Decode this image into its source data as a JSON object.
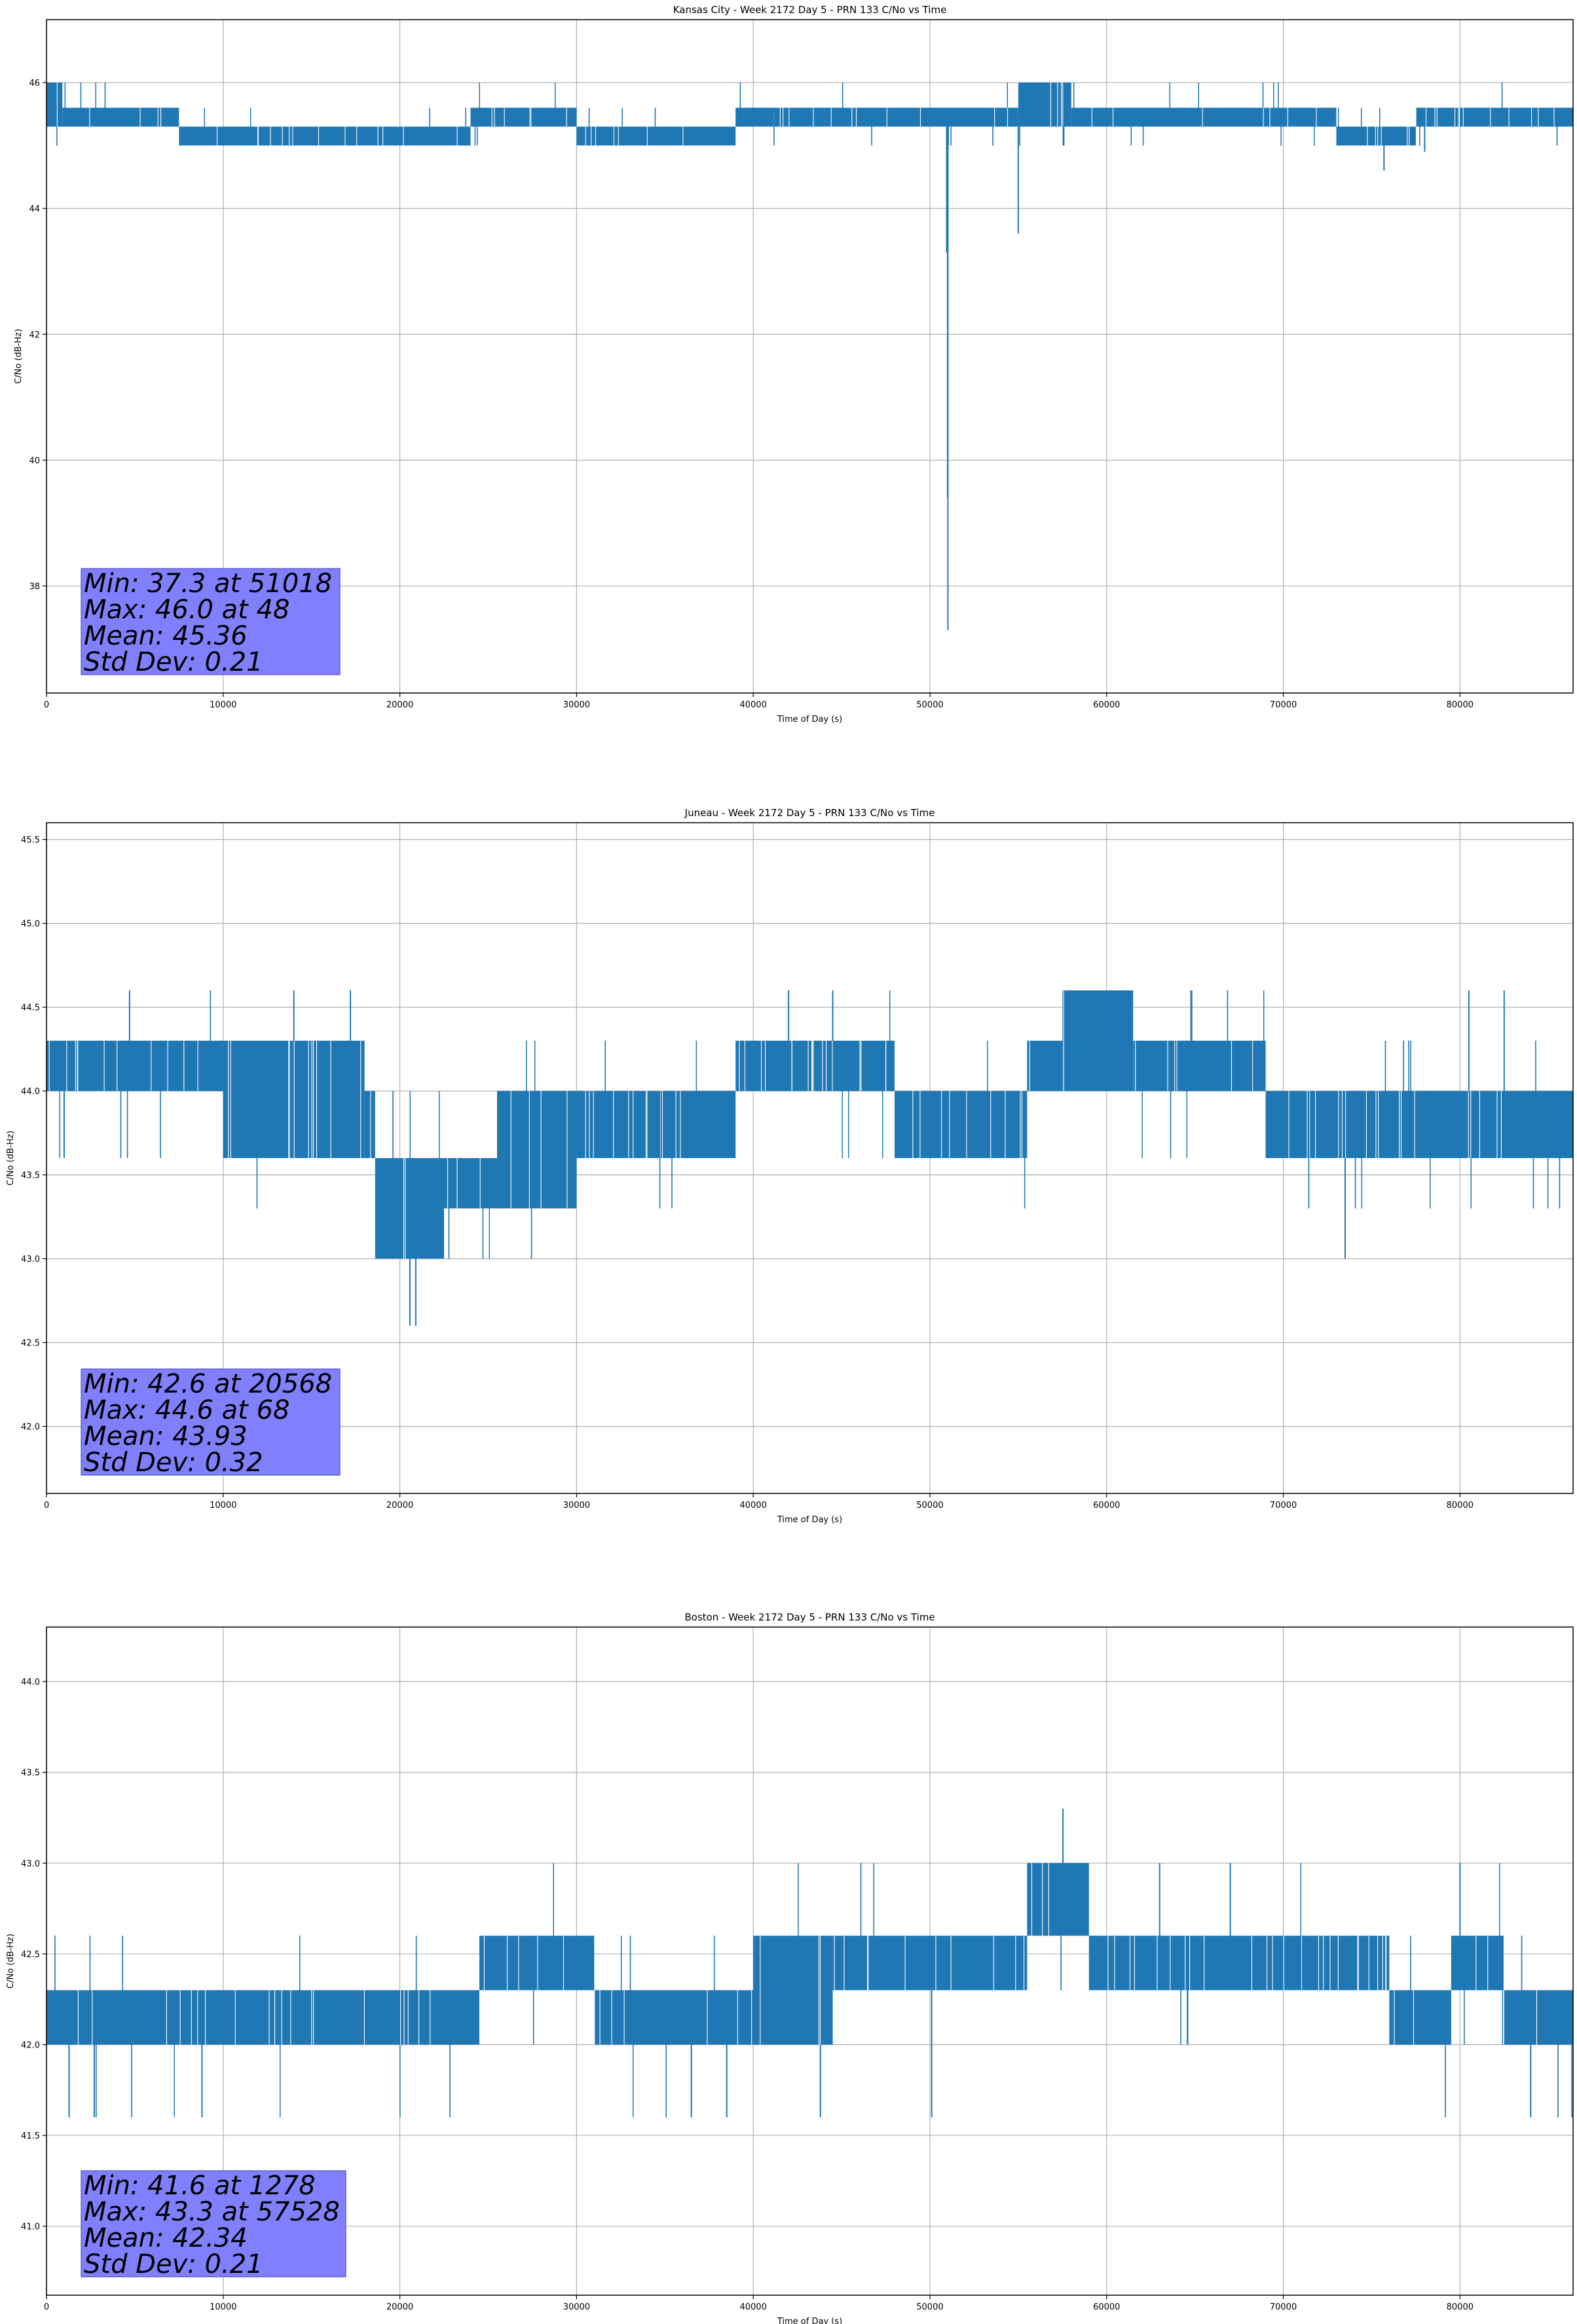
{
  "chart_data": [
    {
      "type": "line",
      "title": "Kansas City - Week 2172 Day 5 - PRN 133 C/No vs Time",
      "xlabel": "Time of Day (s)",
      "ylabel": "C/No (dB-Hz)",
      "xlim": [
        0,
        86400
      ],
      "ylim": [
        36.3,
        47.0
      ],
      "xticks": [
        0,
        10000,
        20000,
        30000,
        40000,
        50000,
        60000,
        70000,
        80000
      ],
      "yticks": [
        38,
        40,
        42,
        44,
        46
      ],
      "grid": true,
      "series_color": "#1f77b4",
      "band_levels": [
        45.0,
        45.3,
        45.6,
        46.0
      ],
      "segments": [
        {
          "x0": 0,
          "x1": 900,
          "lo": 45.3,
          "hi": 46.0
        },
        {
          "x0": 900,
          "x1": 7500,
          "lo": 45.3,
          "hi": 45.6
        },
        {
          "x0": 7500,
          "x1": 24000,
          "lo": 45.0,
          "hi": 45.3
        },
        {
          "x0": 24000,
          "x1": 30000,
          "lo": 45.3,
          "hi": 45.6
        },
        {
          "x0": 30000,
          "x1": 39000,
          "lo": 45.0,
          "hi": 45.3
        },
        {
          "x0": 39000,
          "x1": 55000,
          "lo": 45.3,
          "hi": 45.6
        },
        {
          "x0": 55000,
          "x1": 58000,
          "lo": 45.3,
          "hi": 46.0
        },
        {
          "x0": 58000,
          "x1": 73000,
          "lo": 45.3,
          "hi": 45.6
        },
        {
          "x0": 73000,
          "x1": 77500,
          "lo": 45.0,
          "hi": 45.3
        },
        {
          "x0": 77500,
          "x1": 86400,
          "lo": 45.3,
          "hi": 45.6
        }
      ],
      "spikes": [
        {
          "x": 51018,
          "y": 37.3
        },
        {
          "x": 51000,
          "y": 39.4
        },
        {
          "x": 50950,
          "y": 43.3
        },
        {
          "x": 55000,
          "y": 43.6
        },
        {
          "x": 75700,
          "y": 44.6
        },
        {
          "x": 78000,
          "y": 44.9
        }
      ],
      "stats": {
        "min": "Min: 37.3 at 51018",
        "max": "Max: 46.0 at 48",
        "mean": "Mean: 45.36",
        "std": "Std Dev: 0.21"
      }
    },
    {
      "type": "line",
      "title": "Juneau - Week 2172 Day 5 - PRN 133 C/No vs Time",
      "xlabel": "Time of Day (s)",
      "ylabel": "C/No (dB-Hz)",
      "xlim": [
        0,
        86400
      ],
      "ylim": [
        41.6,
        45.6
      ],
      "xticks": [
        0,
        10000,
        20000,
        30000,
        40000,
        50000,
        60000,
        70000,
        80000
      ],
      "yticks": [
        42.0,
        42.5,
        43.0,
        43.5,
        44.0,
        44.5,
        45.0,
        45.5
      ],
      "grid": true,
      "series_color": "#1f77b4",
      "band_levels": [
        42.6,
        43.0,
        43.3,
        43.6,
        44.0,
        44.3,
        44.6
      ],
      "segments": [
        {
          "x0": 0,
          "x1": 10000,
          "lo": 44.0,
          "hi": 44.3
        },
        {
          "x0": 10000,
          "x1": 18000,
          "lo": 43.6,
          "hi": 44.3
        },
        {
          "x0": 18000,
          "x1": 18600,
          "lo": 43.6,
          "hi": 44.0
        },
        {
          "x0": 18600,
          "x1": 22500,
          "lo": 43.0,
          "hi": 43.6
        },
        {
          "x0": 22500,
          "x1": 25500,
          "lo": 43.3,
          "hi": 43.6
        },
        {
          "x0": 25500,
          "x1": 30000,
          "lo": 43.3,
          "hi": 44.0
        },
        {
          "x0": 30000,
          "x1": 39000,
          "lo": 43.6,
          "hi": 44.0
        },
        {
          "x0": 39000,
          "x1": 48000,
          "lo": 44.0,
          "hi": 44.3
        },
        {
          "x0": 48000,
          "x1": 55500,
          "lo": 43.6,
          "hi": 44.0
        },
        {
          "x0": 55500,
          "x1": 57500,
          "lo": 44.0,
          "hi": 44.3
        },
        {
          "x0": 57500,
          "x1": 61500,
          "lo": 44.0,
          "hi": 44.6
        },
        {
          "x0": 61500,
          "x1": 69000,
          "lo": 44.0,
          "hi": 44.3
        },
        {
          "x0": 69000,
          "x1": 86400,
          "lo": 43.6,
          "hi": 44.0
        }
      ],
      "spikes": [
        {
          "x": 20568,
          "y": 42.6
        },
        {
          "x": 20900,
          "y": 42.6
        },
        {
          "x": 73500,
          "y": 43.0
        },
        {
          "x": 1000,
          "y": 43.6
        },
        {
          "x": 4700,
          "y": 44.6
        },
        {
          "x": 14000,
          "y": 44.6
        },
        {
          "x": 17200,
          "y": 44.6
        },
        {
          "x": 42000,
          "y": 44.6
        },
        {
          "x": 44500,
          "y": 44.6
        },
        {
          "x": 80500,
          "y": 44.6
        },
        {
          "x": 82500,
          "y": 44.6
        }
      ],
      "stats": {
        "min": "Min: 42.6 at 20568",
        "max": "Max: 44.6 at 68",
        "mean": "Mean: 43.93",
        "std": "Std Dev: 0.32"
      }
    },
    {
      "type": "line",
      "title": "Boston - Week 2172 Day 5 - PRN 133 C/No vs Time",
      "xlabel": "Time of Day (s)",
      "ylabel": "C/No (dB-Hz)",
      "xlim": [
        0,
        86400
      ],
      "ylim": [
        40.62,
        44.3
      ],
      "xticks": [
        0,
        10000,
        20000,
        30000,
        40000,
        50000,
        60000,
        70000,
        80000
      ],
      "yticks": [
        41.0,
        41.5,
        42.0,
        42.5,
        43.0,
        43.5,
        44.0
      ],
      "grid": true,
      "series_color": "#1f77b4",
      "band_levels": [
        41.6,
        42.0,
        42.3,
        42.6,
        43.0
      ],
      "segments": [
        {
          "x0": 0,
          "x1": 24500,
          "lo": 42.0,
          "hi": 42.3
        },
        {
          "x0": 24500,
          "x1": 31000,
          "lo": 42.3,
          "hi": 42.6
        },
        {
          "x0": 31000,
          "x1": 40000,
          "lo": 42.0,
          "hi": 42.3
        },
        {
          "x0": 40000,
          "x1": 44500,
          "lo": 42.0,
          "hi": 42.6
        },
        {
          "x0": 44500,
          "x1": 55500,
          "lo": 42.3,
          "hi": 42.6
        },
        {
          "x0": 55500,
          "x1": 59000,
          "lo": 42.6,
          "hi": 43.0
        },
        {
          "x0": 59000,
          "x1": 76000,
          "lo": 42.3,
          "hi": 42.6
        },
        {
          "x0": 76000,
          "x1": 79500,
          "lo": 42.0,
          "hi": 42.3
        },
        {
          "x0": 79500,
          "x1": 82500,
          "lo": 42.3,
          "hi": 42.6
        },
        {
          "x0": 82500,
          "x1": 86400,
          "lo": 42.0,
          "hi": 42.3
        }
      ],
      "spikes": [
        {
          "x": 1278,
          "y": 41.6
        },
        {
          "x": 8800,
          "y": 41.6
        },
        {
          "x": 36500,
          "y": 41.6
        },
        {
          "x": 38500,
          "y": 41.6
        },
        {
          "x": 43800,
          "y": 41.6
        },
        {
          "x": 50100,
          "y": 41.6
        },
        {
          "x": 84000,
          "y": 41.6
        },
        {
          "x": 57528,
          "y": 43.3
        },
        {
          "x": 63000,
          "y": 43.0
        },
        {
          "x": 67000,
          "y": 43.0
        },
        {
          "x": 80000,
          "y": 43.0
        }
      ],
      "stats": {
        "min": "Min: 41.6 at 1278",
        "max": "Max: 43.3 at 57528",
        "mean": "Mean: 42.34",
        "std": "Std Dev: 0.21"
      }
    }
  ]
}
